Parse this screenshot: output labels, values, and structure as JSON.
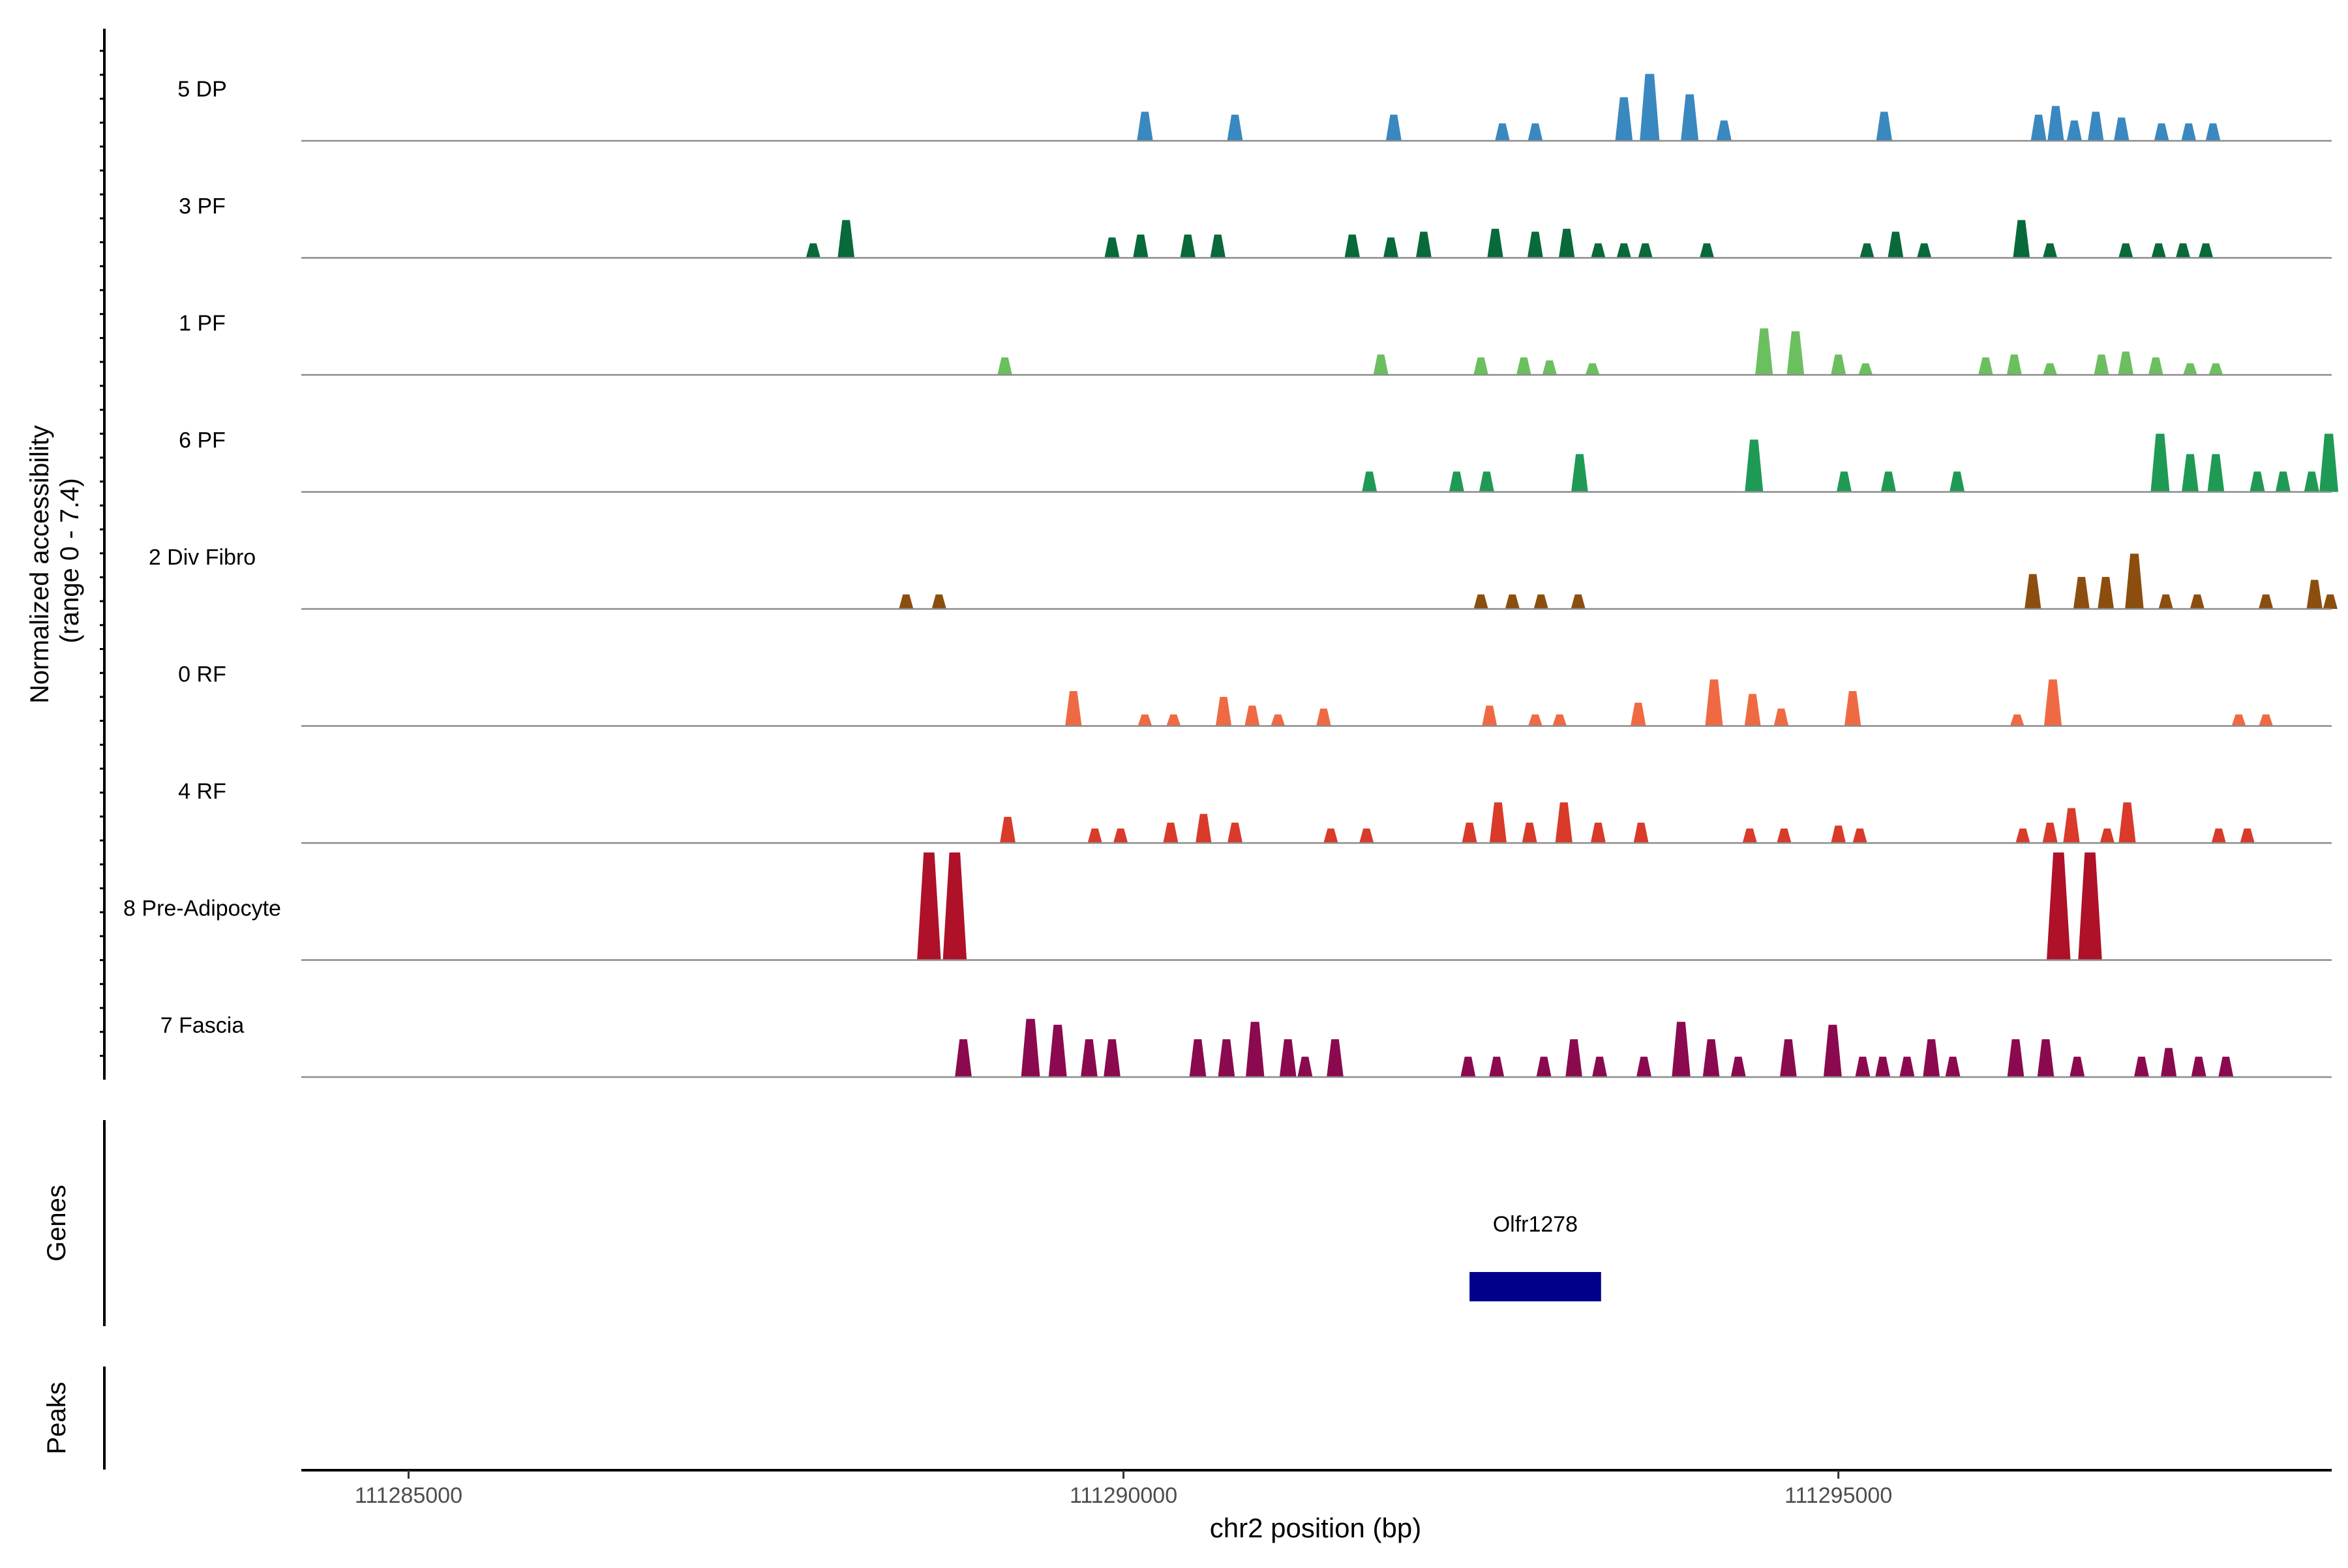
{
  "chart_data": {
    "type": "area",
    "xlabel": "chr2 position (bp)",
    "xlim": [
      111284250,
      111298450
    ],
    "x_ticks": [
      111285000,
      111290000,
      111295000
    ],
    "x_tick_labels": [
      "111285000",
      "111290000",
      "111295000"
    ],
    "ylabel_line1": "Normalized accessibility",
    "ylabel_line2": "(range 0 - 7.4)",
    "ylim": [
      0,
      7.4
    ],
    "tracks": [
      {
        "name": "5 DP",
        "color": "#3A88C0",
        "peaks": [
          [
            111290150,
            2
          ],
          [
            111290780,
            1.8
          ],
          [
            111291890,
            1.8
          ],
          [
            111292650,
            1.2
          ],
          [
            111292880,
            1.2
          ],
          [
            111293500,
            3
          ],
          [
            111293680,
            4.6
          ],
          [
            111293960,
            3.2
          ],
          [
            111294200,
            1.4
          ],
          [
            111295320,
            2
          ],
          [
            111296400,
            1.8
          ],
          [
            111296520,
            2.4
          ],
          [
            111296650,
            1.4
          ],
          [
            111296800,
            2
          ],
          [
            111296980,
            1.6
          ],
          [
            111297260,
            1.2
          ],
          [
            111297450,
            1.2
          ],
          [
            111297620,
            1.2
          ]
        ]
      },
      {
        "name": "3 PF",
        "color": "#08693A",
        "peaks": [
          [
            111287830,
            1
          ],
          [
            111288060,
            2.6
          ],
          [
            111289920,
            1.4
          ],
          [
            111290120,
            1.6
          ],
          [
            111290450,
            1.6
          ],
          [
            111290660,
            1.6
          ],
          [
            111291600,
            1.6
          ],
          [
            111291870,
            1.4
          ],
          [
            111292100,
            1.8
          ],
          [
            111292600,
            2
          ],
          [
            111292880,
            1.8
          ],
          [
            111293100,
            2
          ],
          [
            111293320,
            1
          ],
          [
            111293500,
            1
          ],
          [
            111293650,
            1
          ],
          [
            111294080,
            1
          ],
          [
            111295200,
            1
          ],
          [
            111295400,
            1.8
          ],
          [
            111295600,
            1
          ],
          [
            111296280,
            2.6
          ],
          [
            111296480,
            1
          ],
          [
            111297010,
            1
          ],
          [
            111297240,
            1
          ],
          [
            111297410,
            1
          ],
          [
            111297570,
            1
          ]
        ]
      },
      {
        "name": "1 PF",
        "color": "#6BBF5F",
        "peaks": [
          [
            111289170,
            1.2
          ],
          [
            111291800,
            1.4
          ],
          [
            111292500,
            1.2
          ],
          [
            111292800,
            1.2
          ],
          [
            111292980,
            1
          ],
          [
            111293280,
            0.8
          ],
          [
            111294480,
            3.2
          ],
          [
            111294700,
            3
          ],
          [
            111295000,
            1.4
          ],
          [
            111295190,
            0.8
          ],
          [
            111296030,
            1.2
          ],
          [
            111296230,
            1.4
          ],
          [
            111296480,
            0.8
          ],
          [
            111296840,
            1.4
          ],
          [
            111297010,
            1.6
          ],
          [
            111297220,
            1.2
          ],
          [
            111297460,
            0.8
          ],
          [
            111297640,
            0.8
          ]
        ]
      },
      {
        "name": "6 PF",
        "color": "#1F9A55",
        "peaks": [
          [
            111291720,
            1.4
          ],
          [
            111292330,
            1.4
          ],
          [
            111292540,
            1.4
          ],
          [
            111293190,
            2.6
          ],
          [
            111294410,
            3.6
          ],
          [
            111295040,
            1.4
          ],
          [
            111295350,
            1.4
          ],
          [
            111295830,
            1.4
          ],
          [
            111297250,
            4
          ],
          [
            111297460,
            2.6
          ],
          [
            111297640,
            2.6
          ],
          [
            111297930,
            1.4
          ],
          [
            111298110,
            1.4
          ],
          [
            111298310,
            1.4
          ],
          [
            111298430,
            4
          ]
        ]
      },
      {
        "name": "2 Div Fibro",
        "color": "#8B4E0E",
        "peaks": [
          [
            111288480,
            1
          ],
          [
            111288710,
            1
          ],
          [
            111292500,
            1
          ],
          [
            111292720,
            1
          ],
          [
            111292920,
            1
          ],
          [
            111293180,
            1
          ],
          [
            111296360,
            2.4
          ],
          [
            111296700,
            2.2
          ],
          [
            111296870,
            2.2
          ],
          [
            111297070,
            3.8
          ],
          [
            111297290,
            1
          ],
          [
            111297510,
            1
          ],
          [
            111297990,
            1
          ],
          [
            111298330,
            2
          ],
          [
            111298440,
            1
          ]
        ]
      },
      {
        "name": "0 RF",
        "color": "#EF6A43",
        "peaks": [
          [
            111289650,
            2.4
          ],
          [
            111290150,
            0.8
          ],
          [
            111290350,
            0.8
          ],
          [
            111290700,
            2
          ],
          [
            111290900,
            1.4
          ],
          [
            111291080,
            0.8
          ],
          [
            111291400,
            1.2
          ],
          [
            111292560,
            1.4
          ],
          [
            111292880,
            0.8
          ],
          [
            111293050,
            0.8
          ],
          [
            111293600,
            1.6
          ],
          [
            111294130,
            3.2
          ],
          [
            111294400,
            2.2
          ],
          [
            111294600,
            1.2
          ],
          [
            111295100,
            2.4
          ],
          [
            111296250,
            0.8
          ],
          [
            111296500,
            3.2
          ],
          [
            111297800,
            0.8
          ],
          [
            111297990,
            0.8
          ]
        ]
      },
      {
        "name": "4 RF",
        "color": "#D93A2A",
        "peaks": [
          [
            111289190,
            1.8
          ],
          [
            111289800,
            1
          ],
          [
            111289980,
            1
          ],
          [
            111290330,
            1.4
          ],
          [
            111290560,
            2
          ],
          [
            111290780,
            1.4
          ],
          [
            111291450,
            1
          ],
          [
            111291700,
            1
          ],
          [
            111292420,
            1.4
          ],
          [
            111292620,
            2.8
          ],
          [
            111292840,
            1.4
          ],
          [
            111293080,
            2.8
          ],
          [
            111293320,
            1.4
          ],
          [
            111293620,
            1.4
          ],
          [
            111294380,
            1
          ],
          [
            111294620,
            1
          ],
          [
            111295000,
            1.2
          ],
          [
            111295150,
            1
          ],
          [
            111296290,
            1
          ],
          [
            111296480,
            1.4
          ],
          [
            111296630,
            2.4
          ],
          [
            111296880,
            1
          ],
          [
            111297020,
            2.8
          ],
          [
            111297660,
            1
          ],
          [
            111297860,
            1
          ]
        ]
      },
      {
        "name": "8 Pre-Adipocyte",
        "color": "#AE1128",
        "peaks": [
          [
            111288640,
            7.4
          ],
          [
            111288820,
            7.4
          ],
          [
            111296540,
            7.4
          ],
          [
            111296760,
            7.4
          ]
        ]
      },
      {
        "name": "7 Fascia",
        "color": "#8B0A4F",
        "peaks": [
          [
            111288880,
            2.6
          ],
          [
            111289350,
            4
          ],
          [
            111289540,
            3.6
          ],
          [
            111289760,
            2.6
          ],
          [
            111289920,
            2.6
          ],
          [
            111290520,
            2.6
          ],
          [
            111290720,
            2.6
          ],
          [
            111290920,
            3.8
          ],
          [
            111291150,
            2.6
          ],
          [
            111291270,
            1.4
          ],
          [
            111291480,
            2.6
          ],
          [
            111292410,
            1.4
          ],
          [
            111292610,
            1.4
          ],
          [
            111292940,
            1.4
          ],
          [
            111293150,
            2.6
          ],
          [
            111293330,
            1.4
          ],
          [
            111293640,
            1.4
          ],
          [
            111293900,
            3.8
          ],
          [
            111294110,
            2.6
          ],
          [
            111294300,
            1.4
          ],
          [
            111294650,
            2.6
          ],
          [
            111294960,
            3.6
          ],
          [
            111295170,
            1.4
          ],
          [
            111295310,
            1.4
          ],
          [
            111295480,
            1.4
          ],
          [
            111295650,
            2.6
          ],
          [
            111295800,
            1.4
          ],
          [
            111296240,
            2.6
          ],
          [
            111296450,
            2.6
          ],
          [
            111296670,
            1.4
          ],
          [
            111297120,
            1.4
          ],
          [
            111297310,
            2
          ],
          [
            111297520,
            1.4
          ],
          [
            111297710,
            1.4
          ]
        ]
      }
    ],
    "genes_label": "Genes",
    "peaks_label": "Peaks",
    "genes": [
      {
        "name": "Olfr1278",
        "start": 111292420,
        "end": 111293340,
        "color": "#00008B"
      }
    ]
  }
}
